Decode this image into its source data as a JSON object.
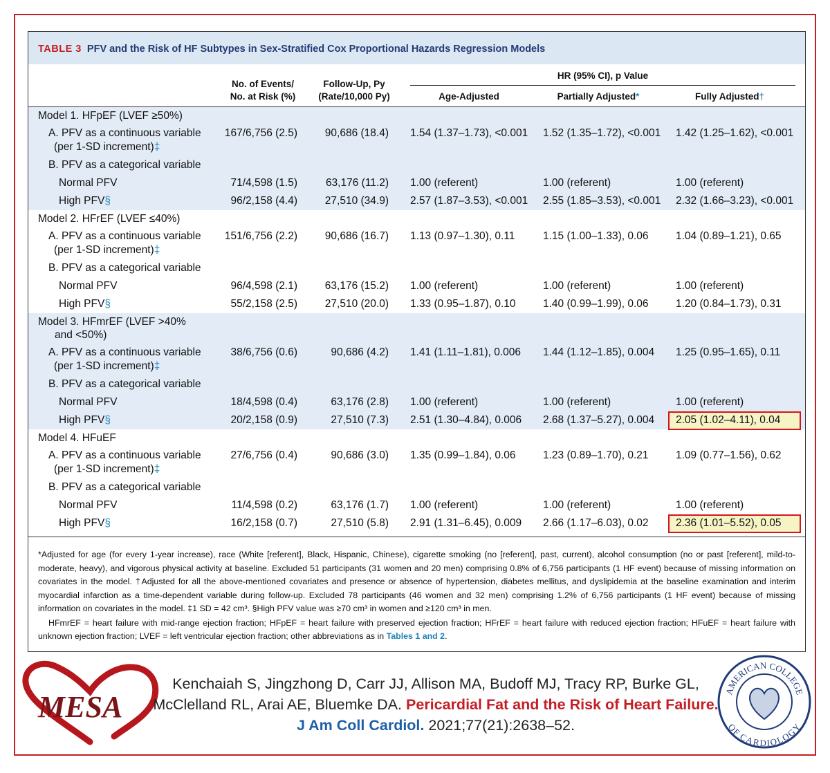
{
  "table": {
    "label": "TABLE 3",
    "title": "PFV and the Risk of HF Subtypes in Sex-Stratified Cox Proportional Hazards Regression Models",
    "header": {
      "events": [
        "No. of Events/",
        "No. at Risk (%)"
      ],
      "followup": [
        "Follow-Up, Py",
        "(Rate/10,000 Py)"
      ],
      "hr": "HR (95% CI), p Value",
      "age": "Age-Adjusted",
      "partial": "Partially Adjusted",
      "partial_mark": "*",
      "full": "Fully Adjusted",
      "full_mark": "†"
    },
    "models": [
      {
        "title": [
          "Model 1. HFpEF (LVEF ≥50%)"
        ],
        "rows": [
          {
            "label": [
              "A. PFV as a continuous variable",
              "(per 1-SD increment)"
            ],
            "mark": "‡",
            "events": "167/6,756 (2.5)",
            "followup": "90,686 (18.4)",
            "age": "1.54 (1.37–1.73), <0.001",
            "partial": "1.52 (1.35–1.72), <0.001",
            "full": "1.42 (1.25–1.62), <0.001"
          },
          {
            "label": [
              "B. PFV as a categorical variable"
            ]
          },
          {
            "label": [
              "Normal PFV"
            ],
            "events": "71/4,598 (1.5)",
            "followup": "63,176 (11.2)",
            "age": "1.00 (referent)",
            "partial": "1.00 (referent)",
            "full": "1.00 (referent)"
          },
          {
            "label": [
              "High PFV"
            ],
            "mark": "§",
            "events": "96/2,158 (4.4)",
            "followup": "27,510 (34.9)",
            "age": "2.57 (1.87–3.53), <0.001",
            "partial": "2.55 (1.85–3.53), <0.001",
            "full": "2.32 (1.66–3.23), <0.001"
          }
        ]
      },
      {
        "title": [
          "Model 2. HFrEF (LVEF ≤40%)"
        ],
        "rows": [
          {
            "label": [
              "A. PFV as a continuous variable",
              "(per 1-SD increment)"
            ],
            "mark": "‡",
            "events": "151/6,756 (2.2)",
            "followup": "90,686 (16.7)",
            "age": "1.13 (0.97–1.30), 0.11",
            "partial": "1.15 (1.00–1.33), 0.06",
            "full": "1.04 (0.89–1.21), 0.65"
          },
          {
            "label": [
              "B. PFV as a categorical variable"
            ]
          },
          {
            "label": [
              "Normal PFV"
            ],
            "events": "96/4,598 (2.1)",
            "followup": "63,176 (15.2)",
            "age": "1.00 (referent)",
            "partial": "1.00 (referent)",
            "full": "1.00 (referent)"
          },
          {
            "label": [
              "High PFV"
            ],
            "mark": "§",
            "events": "55/2,158 (2.5)",
            "followup": "27,510 (20.0)",
            "age": "1.33 (0.95–1.87), 0.10",
            "partial": "1.40 (0.99–1.99), 0.06",
            "full": "1.20 (0.84–1.73), 0.31"
          }
        ]
      },
      {
        "title": [
          "Model 3. HFmrEF (LVEF >40%",
          "and <50%)"
        ],
        "rows": [
          {
            "label": [
              "A. PFV as a continuous variable",
              "(per 1-SD increment)"
            ],
            "mark": "‡",
            "events": "38/6,756 (0.6)",
            "followup": "90,686 (4.2)",
            "age": "1.41 (1.11–1.81), 0.006",
            "partial": "1.44 (1.12–1.85), 0.004",
            "full": "1.25 (0.95–1.65), 0.11"
          },
          {
            "label": [
              "B. PFV as a categorical variable"
            ]
          },
          {
            "label": [
              "Normal PFV"
            ],
            "events": "18/4,598 (0.4)",
            "followup": "63,176 (2.8)",
            "age": "1.00 (referent)",
            "partial": "1.00 (referent)",
            "full": "1.00 (referent)"
          },
          {
            "label": [
              "High PFV"
            ],
            "mark": "§",
            "events": "20/2,158 (0.9)",
            "followup": "27,510 (7.3)",
            "age": "2.51 (1.30–4.84), 0.006",
            "partial": "2.68 (1.37–5.27), 0.004",
            "full": "2.05 (1.02–4.11), 0.04"
          }
        ]
      },
      {
        "title": [
          "Model 4. HFuEF"
        ],
        "rows": [
          {
            "label": [
              "A. PFV as a continuous variable",
              "(per 1-SD increment)"
            ],
            "mark": "‡",
            "events": "27/6,756 (0.4)",
            "followup": "90,686 (3.0)",
            "age": "1.35 (0.99–1.84), 0.06",
            "partial": "1.23 (0.89–1.70), 0.21",
            "full": "1.09 (0.77–1.56), 0.62"
          },
          {
            "label": [
              "B. PFV as a categorical variable"
            ]
          },
          {
            "label": [
              "Normal PFV"
            ],
            "events": "11/4,598 (0.2)",
            "followup": "63,176 (1.7)",
            "age": "1.00 (referent)",
            "partial": "1.00 (referent)",
            "full": "1.00 (referent)"
          },
          {
            "label": [
              "High PFV"
            ],
            "mark": "§",
            "events": "16/2,158 (0.7)",
            "followup": "27,510 (5.8)",
            "age": "2.91 (1.31–6.45), 0.009",
            "partial": "2.66 (1.17–6.03), 0.02",
            "full": "2.36 (1.01–5.52), 0.05"
          }
        ]
      }
    ],
    "footnotes": [
      [
        "*Adjusted for age (for every 1-year increase), race (White [referent], Black, Hispanic, Chinese), cigarette smoking (no [referent], past, current), alcohol consumption (no or past [referent], mild-to-moderate, heavy), and vigorous physical activity at baseline. Excluded 51 participants (31 women and 20 men) comprising 0.8% of 6,756 participants (1 HF event) because of missing information on covariates in the model. †Adjusted for all the above-mentioned covariates and presence or absence of hypertension, diabetes mellitus, and dyslipidemia at the baseline examination and interim myocardial infarction as a time-dependent variable during follow-up. Excluded 78 participants (46 women and 32 men) comprising 1.2% of 6,756 participants (1 HF event) because of missing information on covariates in the model. ‡1 SD = 42 cm³. §High PFV value was ≥70 cm³ in women and ≥120 cm³ in men."
      ],
      [
        "HFmrEF = heart failure with mid-range ejection fraction; HFpEF = heart failure with preserved ejection fraction; HFrEF = heart failure with reduced ejection fraction; HFuEF = heart failure with unknown ejection fraction; LVEF = left ventricular ejection fraction; other abbreviations as in ",
        "Tables 1 and 2",
        "."
      ]
    ]
  },
  "citation": {
    "authors": [
      "Kenchaiah S, Jingzhong D, Carr JJ, Allison MA,  Budoff MJ, Tracy RP, Burke GL,",
      "McClelland RL, Arai AE, Bluemke DA."
    ],
    "article": "Pericardial Fat and the Risk of Heart Failure.",
    "journal": "J Am Coll Cardiol.",
    "ref": " 2021;77(21):2638–52."
  },
  "logos": {
    "mesa": "MESA",
    "acc": [
      "AMERICAN COLLEGE",
      "OF CARDIOLOGY"
    ]
  }
}
